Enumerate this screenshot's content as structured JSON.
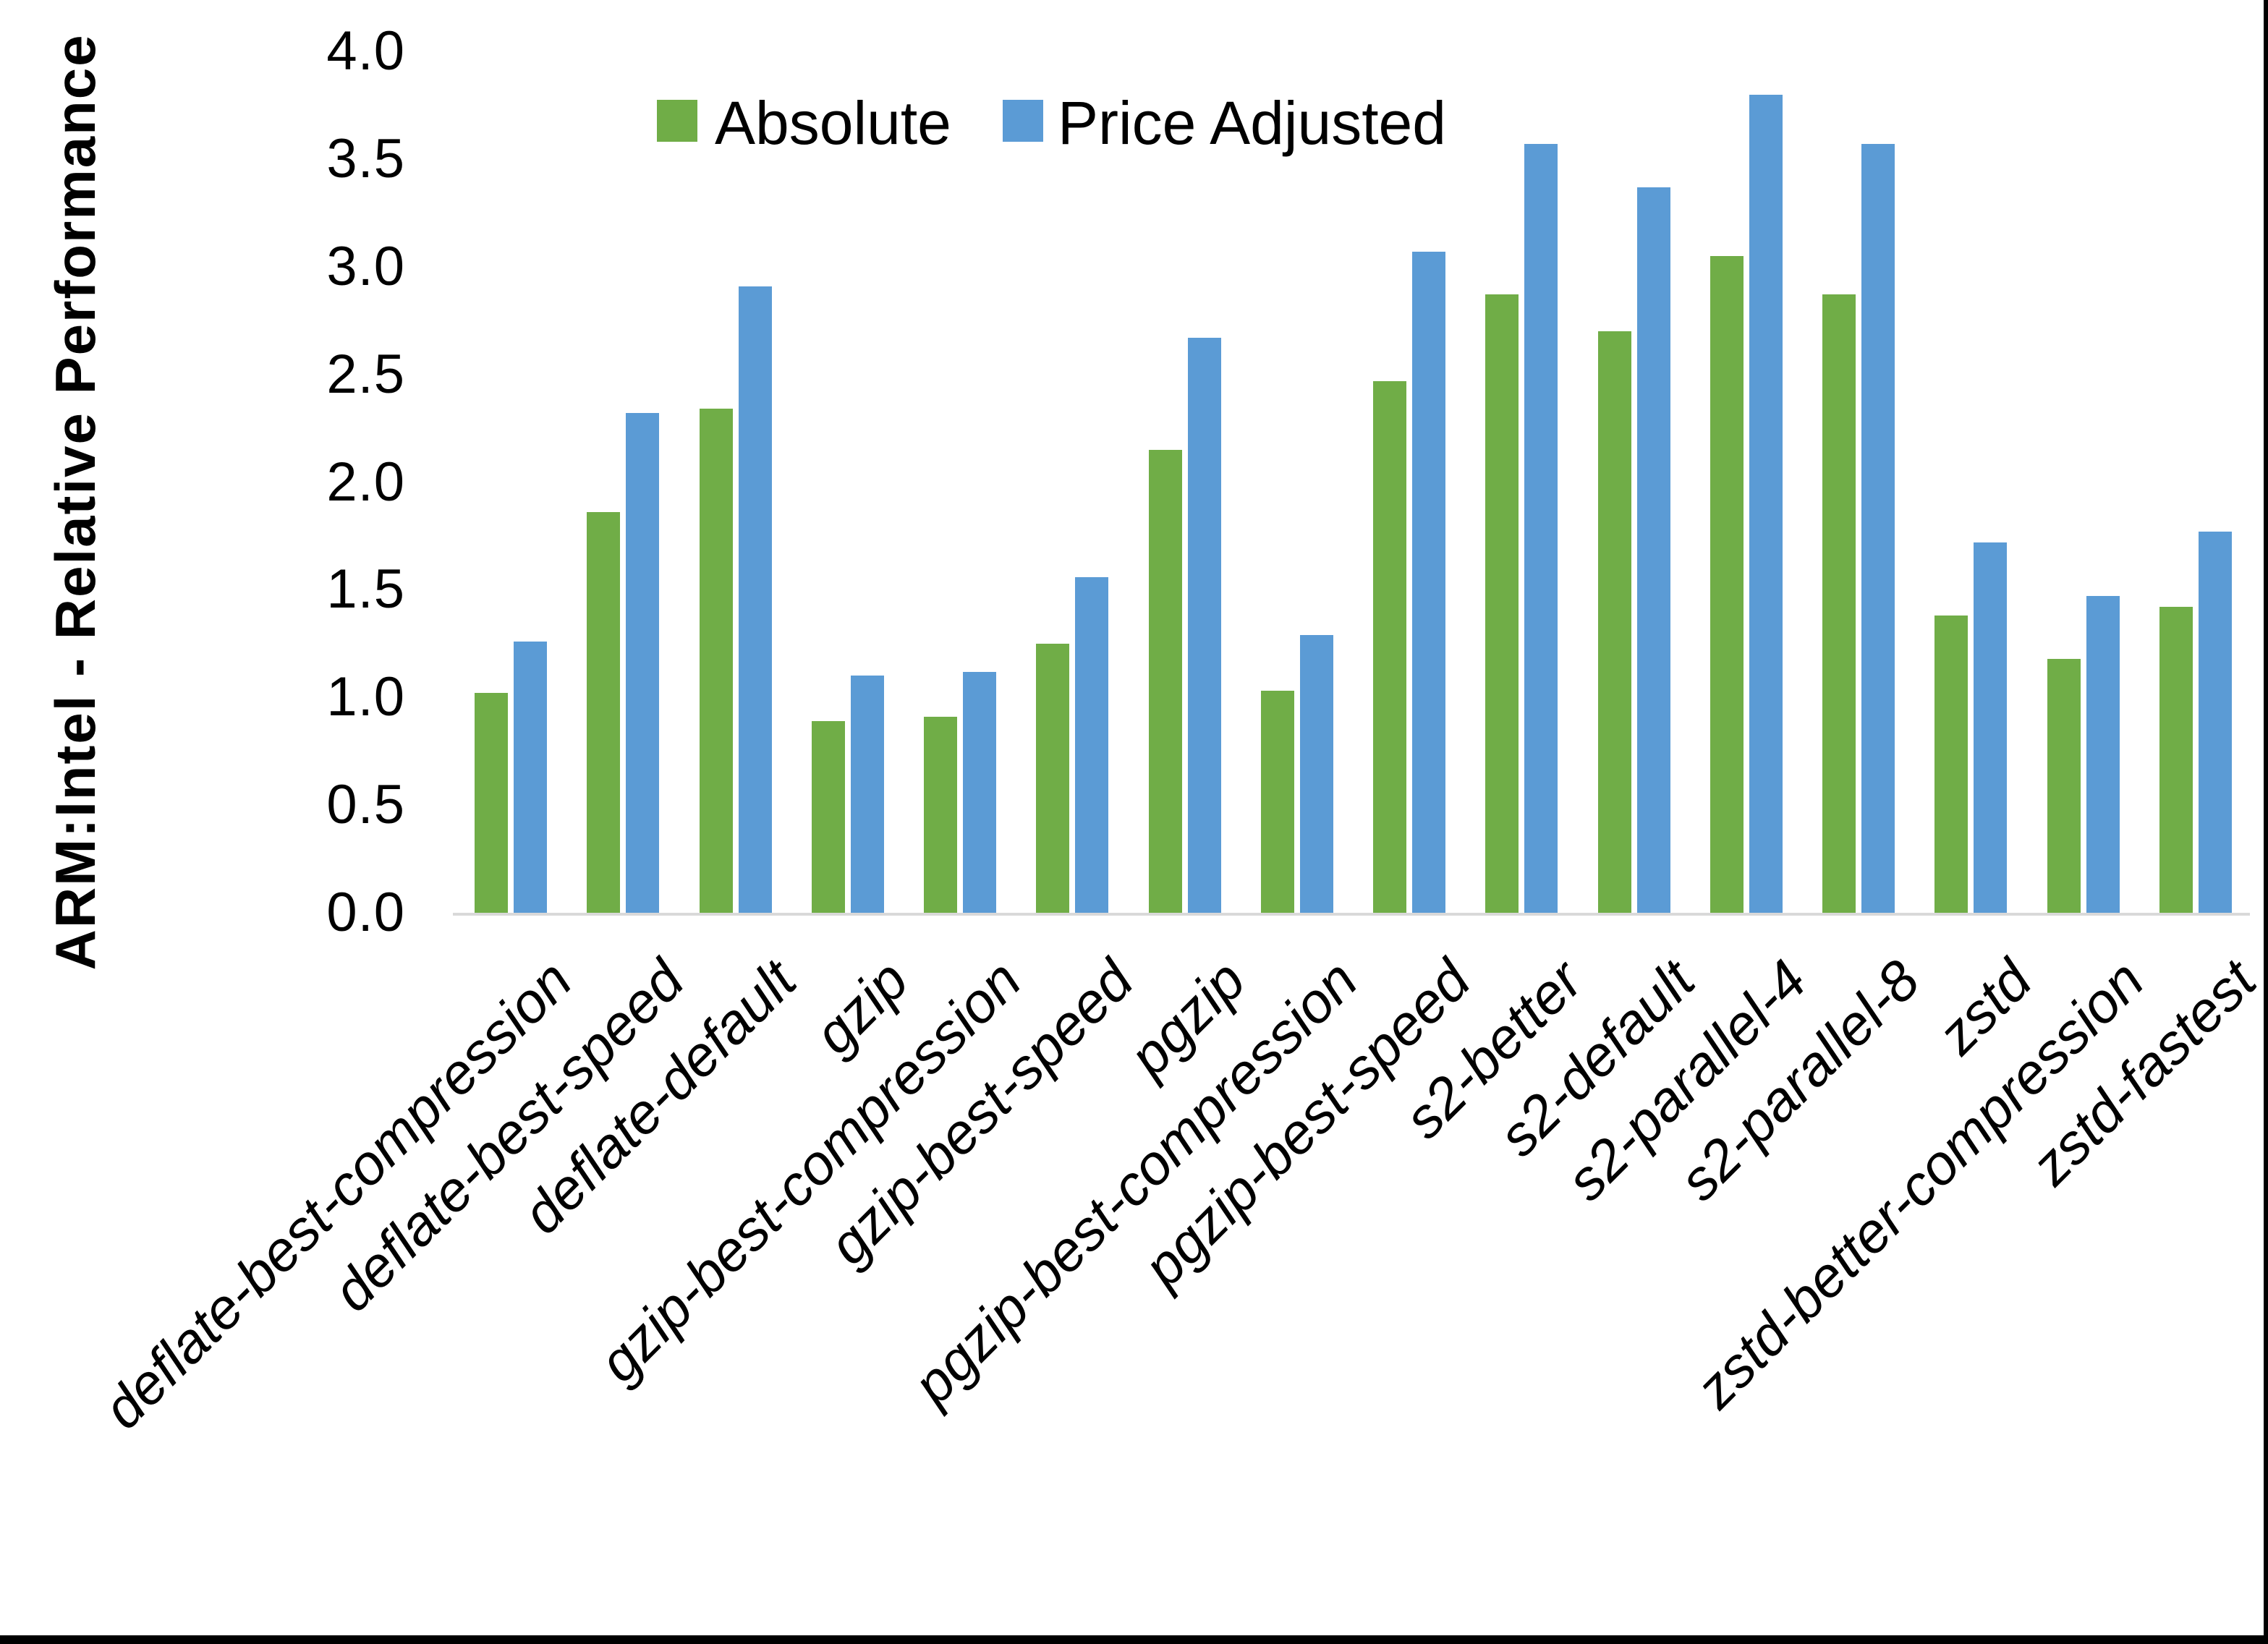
{
  "page": {
    "background": "#ffffff",
    "border_color": "#000000"
  },
  "chart": {
    "y_axis_title": "ARM:Intel - Relative Performance",
    "y_ticks": [
      "4.0",
      "3.5",
      "3.0",
      "2.5",
      "2.0",
      "1.5",
      "1.0",
      "0.5",
      "0.0"
    ],
    "axis_line_color": "#d9d9d9",
    "legend": [
      {
        "label": "Absolute",
        "color": "#70AD47"
      },
      {
        "label": "Price Adjusted",
        "color": "#5B9BD5"
      }
    ]
  },
  "chart_data": {
    "type": "bar",
    "title": "",
    "xlabel": "",
    "ylabel": "ARM:Intel - Relative Performance",
    "ylim": [
      0.0,
      4.0
    ],
    "y_tick_step": 0.5,
    "grid": false,
    "legend_position": "top-center",
    "categories": [
      "deflate-best-compression",
      "deflate-best-speed",
      "deflate-default",
      "gzip",
      "gzip-best-compression",
      "gzip-best-speed",
      "pgzip",
      "pgzip-best-compression",
      "pgzip-best-speed",
      "s2-better",
      "s2-default",
      "s2-parallel-4",
      "s2-parallel-8",
      "zstd",
      "zstd-better-compression",
      "zstd-fastest"
    ],
    "series": [
      {
        "name": "Absolute",
        "color": "#70AD47",
        "values": [
          1.02,
          1.86,
          2.34,
          0.89,
          0.91,
          1.25,
          2.15,
          1.03,
          2.47,
          2.87,
          2.7,
          3.05,
          2.87,
          1.38,
          1.18,
          1.42
        ]
      },
      {
        "name": "Price Adjusted",
        "color": "#5B9BD5",
        "values": [
          1.26,
          2.32,
          2.91,
          1.1,
          1.12,
          1.56,
          2.67,
          1.29,
          3.07,
          3.57,
          3.37,
          3.8,
          3.57,
          1.72,
          1.47,
          1.77
        ]
      }
    ]
  }
}
